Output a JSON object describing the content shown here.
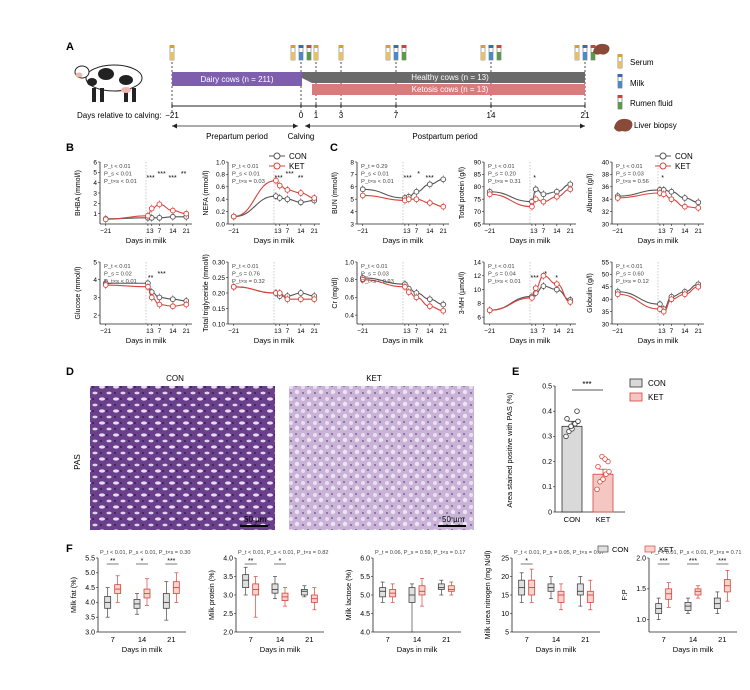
{
  "panels": {
    "a": "A",
    "b": "B",
    "c": "C",
    "d": "D",
    "e": "E",
    "f": "F"
  },
  "timeline": {
    "dairy": "Dairy cows (n = 211)",
    "healthy": "Healthy cows (n = 13)",
    "ketosis": "Ketosis cows (n = 13)",
    "days_label": "Days relative to calving:",
    "days": [
      "−21",
      "0",
      "1",
      "3",
      "7",
      "14",
      "21"
    ],
    "prepartum": "Prepartum period",
    "calving": "Calving",
    "postpartum": "Postpartum period",
    "legend": [
      "Serum",
      "Milk",
      "Rumen fluid",
      "Liver biopsy"
    ],
    "colors": {
      "dairy": "#7d5fae",
      "healthy": "#6a6a6a",
      "ketosis": "#d97b7b"
    }
  },
  "series_legend": {
    "con": "CON",
    "ket": "KET",
    "con_color": "#555555",
    "ket_color": "#d9433b"
  },
  "metabolites": [
    {
      "id": "bhba",
      "ylabel": "BHBA (mmol/l)",
      "yticks": [
        "1",
        "2",
        "3",
        "4",
        "5",
        "6"
      ],
      "ymin": 0,
      "ymax": 6,
      "stats": [
        "P_t < 0.01",
        "P_s < 0.01",
        "P_t×s < 0.01"
      ],
      "sig": [
        "***",
        "***",
        "***",
        "**"
      ],
      "con": [
        0.5,
        0.6,
        0.6,
        0.6,
        0.7,
        0.7
      ],
      "ket": [
        0.45,
        0.8,
        1.5,
        1.9,
        1.3,
        1.0
      ]
    },
    {
      "id": "nefa",
      "ylabel": "NEFA (mmol/l)",
      "yticks": [
        "0.0",
        "0.2",
        "0.4",
        "0.6",
        "0.8",
        "1.0"
      ],
      "ymin": 0,
      "ymax": 1.0,
      "stats": [
        "P_t < 0.01",
        "P_s < 0.01",
        "P_t×s = 0.03"
      ],
      "sig": [
        "***",
        "***",
        "**"
      ],
      "con": [
        0.12,
        0.45,
        0.42,
        0.4,
        0.35,
        0.38
      ],
      "ket": [
        0.12,
        0.7,
        0.62,
        0.55,
        0.5,
        0.42
      ]
    },
    {
      "id": "bun",
      "ylabel": "BUN (mmol/l)",
      "yticks": [
        "3",
        "4",
        "5",
        "6",
        "7",
        "8"
      ],
      "ymin": 3,
      "ymax": 8,
      "stats": [
        "P_t = 0.29",
        "P_s < 0.01",
        "P_t×s < 0.01"
      ],
      "sig": [
        "***",
        "*",
        "***"
      ],
      "con": [
        5.8,
        5.1,
        5.2,
        5.6,
        6.2,
        6.6
      ],
      "ket": [
        5.3,
        4.9,
        5.0,
        5.0,
        4.7,
        4.4
      ]
    },
    {
      "id": "tp",
      "ylabel": "Total protein (g/l)",
      "yticks": [
        "65",
        "70",
        "75",
        "80",
        "85",
        "90"
      ],
      "ymin": 65,
      "ymax": 90,
      "stats": [
        "P_t < 0.01",
        "P_s = 0.20",
        "P_t×s = 0.31"
      ],
      "sig": [
        "*"
      ],
      "con": [
        78,
        74,
        79,
        77,
        78,
        81
      ],
      "ket": [
        77,
        72,
        75,
        74,
        76,
        79
      ]
    },
    {
      "id": "alb",
      "ylabel": "Albumin (g/l)",
      "yticks": [
        "30",
        "32",
        "34",
        "36",
        "38",
        "40"
      ],
      "ymin": 30,
      "ymax": 40,
      "stats": [
        "P_t < 0.01",
        "P_s = 0.03",
        "P_t×s = 0.56"
      ],
      "sig": [
        "*"
      ],
      "con": [
        34.5,
        35.5,
        35.5,
        35.2,
        34.2,
        33.5
      ],
      "ket": [
        34.2,
        35.0,
        34.8,
        34.0,
        32.8,
        32.6
      ]
    },
    {
      "id": "glu",
      "ylabel": "Glucose (mmol/l)",
      "yticks": [
        "2",
        "3",
        "4",
        "5"
      ],
      "ymin": 1.5,
      "ymax": 5,
      "stats": [
        "P_t < 0.01",
        "P_s = 0.02",
        "P_t×s < 0.01"
      ],
      "sig": [
        "**",
        "***"
      ],
      "con": [
        3.8,
        3.8,
        3.3,
        3.0,
        2.9,
        2.8
      ],
      "ket": [
        3.7,
        3.6,
        3.0,
        2.6,
        2.5,
        2.6
      ]
    },
    {
      "id": "tg",
      "ylabel": "Total triglyceride (mmol/l)",
      "yticks": [
        "0.10",
        "0.15",
        "0.20",
        "0.25",
        "0.30"
      ],
      "ymin": 0.1,
      "ymax": 0.3,
      "stats": [
        "P_t < 0.01",
        "P_s = 0.76",
        "P_t×s = 0.32"
      ],
      "sig": [],
      "con": [
        0.22,
        0.2,
        0.19,
        0.19,
        0.2,
        0.19
      ],
      "ket": [
        0.22,
        0.2,
        0.2,
        0.18,
        0.18,
        0.18
      ]
    },
    {
      "id": "cr",
      "ylabel": "Cr (mg/dl)",
      "yticks": [
        "0.4",
        "0.6",
        "0.8",
        "1.0"
      ],
      "ymin": 0.3,
      "ymax": 1.0,
      "stats": [
        "P_t < 0.01",
        "P_s = 0.03",
        "P_t×s = 0.93"
      ],
      "sig": [],
      "con": [
        0.82,
        0.75,
        0.7,
        0.65,
        0.58,
        0.52
      ],
      "ket": [
        0.8,
        0.72,
        0.66,
        0.6,
        0.5,
        0.45
      ]
    },
    {
      "id": "mh",
      "ylabel": "3-MH (µmol/l)",
      "yticks": [
        "6",
        "8",
        "10",
        "12",
        "14"
      ],
      "ymin": 5,
      "ymax": 14,
      "stats": [
        "P_t < 0.01",
        "P_s = 0.04",
        "P_t×s < 0.01"
      ],
      "sig": [
        "***",
        "*",
        "*"
      ],
      "con": [
        7.0,
        9.0,
        9.5,
        10.5,
        10.0,
        8.5
      ],
      "ket": [
        7.0,
        8.8,
        10.2,
        12.0,
        10.8,
        8.2
      ]
    },
    {
      "id": "glob",
      "ylabel": "Globulin (g/l)",
      "yticks": [
        "30",
        "35",
        "40",
        "45",
        "50",
        "55"
      ],
      "ymin": 30,
      "ymax": 55,
      "stats": [
        "P_t < 0.01",
        "P_s = 0.60",
        "P_t×s = 0.12"
      ],
      "sig": [],
      "con": [
        43,
        38,
        36,
        41,
        43,
        46
      ],
      "ket": [
        42,
        36,
        35,
        40,
        42,
        45
      ]
    }
  ],
  "metab_xticks": [
    "−21",
    "1",
    "3",
    "7",
    "14",
    "21"
  ],
  "days_in_milk": "Days in milk",
  "histology": {
    "con": "CON",
    "ket": "KET",
    "stain": "PAS",
    "scale": "50 µm"
  },
  "bar_e": {
    "ylabel": "Area stained positive with PAS (%)",
    "yticks": [
      "0",
      "0.1",
      "0.2",
      "0.3",
      "0.4",
      "0.5"
    ],
    "ymax": 0.5,
    "categories": [
      "CON",
      "KET"
    ],
    "values": [
      0.34,
      0.15
    ],
    "sig": "***",
    "con_points": [
      0.3,
      0.32,
      0.33,
      0.35,
      0.36,
      0.37,
      0.4,
      0.34
    ],
    "ket_points": [
      0.09,
      0.12,
      0.13,
      0.15,
      0.16,
      0.18,
      0.2,
      0.22,
      0.21
    ]
  },
  "chart_data": [
    {
      "type": "box",
      "ylabel": "Milk fat (%)",
      "yticks": [
        "3.0",
        "3.5",
        "4.0",
        "4.5",
        "5.0",
        "5.5"
      ],
      "ymin": 3.0,
      "ymax": 5.5,
      "categories": [
        "7",
        "14",
        "21"
      ],
      "stats": "P_t < 0.01, P_s < 0.01, P_t×s = 0.30",
      "sig": [
        "**",
        "*",
        "***"
      ],
      "series": [
        {
          "name": "CON",
          "q": [
            [
              3.5,
              3.8,
              4.0,
              4.2,
              4.5
            ],
            [
              3.6,
              3.8,
              3.95,
              4.1,
              4.3
            ],
            [
              3.4,
              3.8,
              4.0,
              4.3,
              4.7
            ]
          ]
        },
        {
          "name": "KET",
          "q": [
            [
              4.0,
              4.3,
              4.45,
              4.6,
              4.9
            ],
            [
              3.9,
              4.15,
              4.3,
              4.45,
              4.8
            ],
            [
              4.0,
              4.3,
              4.5,
              4.7,
              5.0
            ]
          ]
        }
      ]
    },
    {
      "type": "box",
      "ylabel": "Milk protein (%)",
      "yticks": [
        "2.0",
        "2.5",
        "3.0",
        "3.5",
        "4.0"
      ],
      "ymin": 2.0,
      "ymax": 4.0,
      "categories": [
        "7",
        "14",
        "21"
      ],
      "stats": "P_t < 0.01, P_s < 0.01, P_t×s = 0.82",
      "sig": [
        "**",
        "*"
      ],
      "series": [
        {
          "name": "CON",
          "q": [
            [
              3.0,
              3.2,
              3.4,
              3.55,
              3.75
            ],
            [
              2.9,
              3.05,
              3.15,
              3.3,
              3.5
            ],
            [
              2.95,
              3.0,
              3.1,
              3.15,
              3.25
            ]
          ]
        },
        {
          "name": "KET",
          "q": [
            [
              2.4,
              3.0,
              3.15,
              3.3,
              3.5
            ],
            [
              2.7,
              2.85,
              2.95,
              3.05,
              3.2
            ],
            [
              2.6,
              2.8,
              2.9,
              3.0,
              3.2
            ]
          ]
        }
      ]
    },
    {
      "type": "box",
      "ylabel": "Milk lactose (%)",
      "yticks": [
        "4.0",
        "4.5",
        "5.0",
        "5.5",
        "6.0"
      ],
      "ymin": 4.0,
      "ymax": 6.0,
      "categories": [
        "7",
        "14",
        "21"
      ],
      "stats": "P_t = 0.06, P_s = 0.59, P_t×s = 0.17",
      "sig": [],
      "series": [
        {
          "name": "CON",
          "q": [
            [
              4.8,
              4.95,
              5.1,
              5.2,
              5.35
            ],
            [
              4.0,
              4.8,
              5.0,
              5.2,
              5.3
            ],
            [
              5.0,
              5.15,
              5.2,
              5.3,
              5.4
            ]
          ]
        },
        {
          "name": "KET",
          "q": [
            [
              4.8,
              4.95,
              5.05,
              5.15,
              5.3
            ],
            [
              4.7,
              5.0,
              5.1,
              5.25,
              5.45
            ],
            [
              5.0,
              5.1,
              5.15,
              5.25,
              5.35
            ]
          ]
        }
      ]
    },
    {
      "type": "box",
      "ylabel": "Milk urea nitrogen (mg N/dl)",
      "yticks": [
        "5",
        "10",
        "15",
        "20",
        "25"
      ],
      "ymin": 5,
      "ymax": 25,
      "categories": [
        "7",
        "14",
        "21"
      ],
      "stats": "P_t < 0.01, P_s = 0.05, P_t×s = 0.07",
      "sig": [
        "*"
      ],
      "series": [
        {
          "name": "CON",
          "q": [
            [
              13,
              15,
              17,
              19,
              21
            ],
            [
              14,
              16,
              17,
              18,
              20
            ],
            [
              12,
              15,
              16,
              18,
              20
            ]
          ]
        },
        {
          "name": "KET",
          "q": [
            [
              13,
              15,
              17,
              19,
              22
            ],
            [
              11,
              13,
              15,
              16,
              18
            ],
            [
              11,
              13,
              15,
              16,
              19
            ]
          ]
        }
      ]
    },
    {
      "type": "box",
      "ylabel": "F:P",
      "yticks": [
        "1.0",
        "1.5",
        "2.0"
      ],
      "ymin": 0.8,
      "ymax": 2.0,
      "categories": [
        "7",
        "14",
        "21"
      ],
      "stats": "P_t < 0.01, P_s < 0.01, P_t×s = 0.71",
      "sig": [
        "***",
        "***",
        "***"
      ],
      "series": [
        {
          "name": "CON",
          "q": [
            [
              1.0,
              1.1,
              1.18,
              1.26,
              1.35
            ],
            [
              1.1,
              1.15,
              1.22,
              1.28,
              1.35
            ],
            [
              1.1,
              1.18,
              1.26,
              1.35,
              1.45
            ]
          ]
        },
        {
          "name": "KET",
          "q": [
            [
              1.2,
              1.33,
              1.42,
              1.5,
              1.6
            ],
            [
              1.35,
              1.4,
              1.46,
              1.5,
              1.55
            ],
            [
              1.3,
              1.45,
              1.55,
              1.65,
              1.8
            ]
          ]
        }
      ]
    }
  ]
}
